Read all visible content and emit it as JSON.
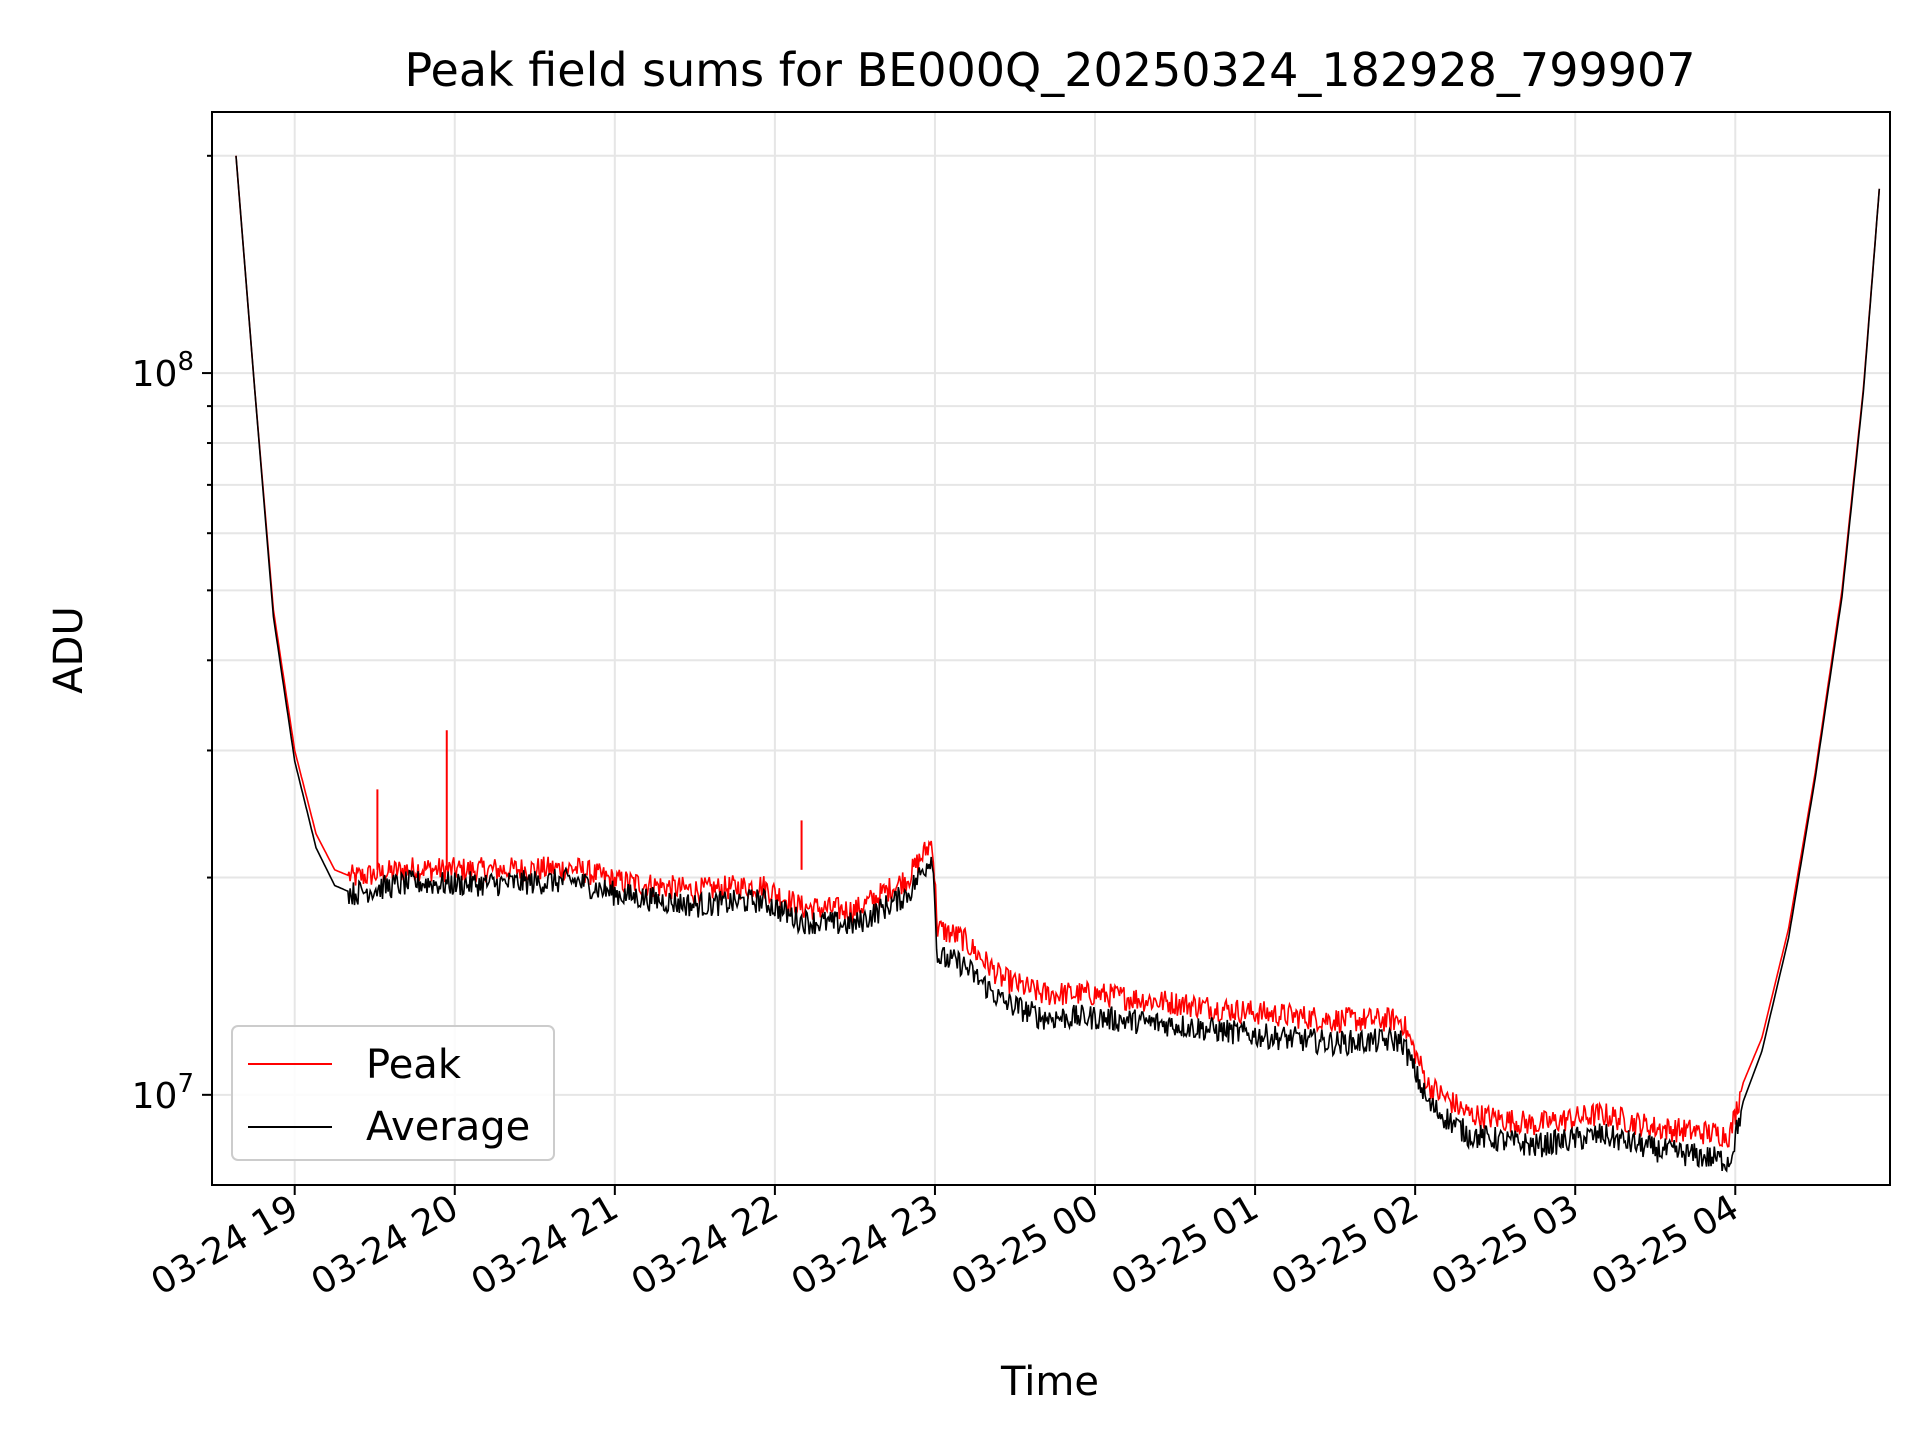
{
  "chart_data": {
    "type": "line",
    "title": "Peak field sums for BE000Q_20250324_182928_799907",
    "xlabel": "Time",
    "ylabel": "ADU",
    "yscale": "log",
    "ylim": [
      7500000,
      230000000
    ],
    "xlim": [
      "2025-03-24 18:29",
      "2025-03-25 04:58"
    ],
    "xticks": [
      "03-24 19",
      "03-24 20",
      "03-24 21",
      "03-24 22",
      "03-24 23",
      "03-25 00",
      "03-25 01",
      "03-25 02",
      "03-25 03",
      "03-25 04"
    ],
    "yticks": [
      "10^8",
      "10^7"
    ],
    "grid": true,
    "legend_position": "lower-left",
    "colors": {
      "peak": "#ff0000",
      "average": "#000000",
      "grid": "#e6e6e6"
    },
    "series": [
      {
        "name": "Peak",
        "x": [
          "2025-03-24 18:38",
          "2025-03-24 18:45",
          "2025-03-24 18:52",
          "2025-03-24 19:00",
          "2025-03-24 19:08",
          "2025-03-24 19:15",
          "2025-03-24 19:22",
          "2025-03-24 19:30",
          "2025-03-24 19:45",
          "2025-03-24 19:55",
          "2025-03-24 20:15",
          "2025-03-24 20:45",
          "2025-03-24 21:00",
          "2025-03-24 21:30",
          "2025-03-24 21:55",
          "2025-03-24 22:10",
          "2025-03-24 22:30",
          "2025-03-24 22:50",
          "2025-03-24 22:59",
          "2025-03-24 23:01",
          "2025-03-24 23:10",
          "2025-03-24 23:25",
          "2025-03-24 23:40",
          "2025-03-25 00:00",
          "2025-03-25 00:30",
          "2025-03-25 01:00",
          "2025-03-25 01:30",
          "2025-03-25 01:55",
          "2025-03-25 02:05",
          "2025-03-25 02:20",
          "2025-03-25 02:45",
          "2025-03-25 03:10",
          "2025-03-25 03:30",
          "2025-03-25 03:58",
          "2025-03-25 04:03",
          "2025-03-25 04:10",
          "2025-03-25 04:20",
          "2025-03-25 04:30",
          "2025-03-25 04:40",
          "2025-03-25 04:48",
          "2025-03-25 04:54"
        ],
        "y": [
          200000000,
          95000000,
          47000000,
          30000000,
          23000000,
          20500000,
          20000000,
          20200000,
          20600000,
          20500000,
          20500000,
          20600000,
          19800000,
          19200000,
          19500000,
          18200000,
          18000000,
          20000000,
          22500000,
          17000000,
          16500000,
          14500000,
          13800000,
          13800000,
          13400000,
          13000000,
          12700000,
          12700000,
          10300000,
          9400000,
          9100000,
          9400000,
          9000000,
          8800000,
          10400000,
          12000000,
          17000000,
          28000000,
          50000000,
          95000000,
          180000000
        ]
      },
      {
        "name": "Average",
        "x": [
          "2025-03-24 18:38",
          "2025-03-24 18:45",
          "2025-03-24 18:52",
          "2025-03-24 19:00",
          "2025-03-24 19:08",
          "2025-03-24 19:15",
          "2025-03-24 19:22",
          "2025-03-24 19:30",
          "2025-03-24 19:45",
          "2025-03-24 19:55",
          "2025-03-24 20:15",
          "2025-03-24 20:45",
          "2025-03-24 21:00",
          "2025-03-24 21:30",
          "2025-03-24 21:55",
          "2025-03-24 22:10",
          "2025-03-24 22:30",
          "2025-03-24 22:50",
          "2025-03-24 22:59",
          "2025-03-24 23:01",
          "2025-03-24 23:10",
          "2025-03-24 23:25",
          "2025-03-24 23:40",
          "2025-03-25 00:00",
          "2025-03-25 00:30",
          "2025-03-25 01:00",
          "2025-03-25 01:30",
          "2025-03-25 01:55",
          "2025-03-25 02:05",
          "2025-03-25 02:20",
          "2025-03-25 02:45",
          "2025-03-25 03:10",
          "2025-03-25 03:30",
          "2025-03-25 03:58",
          "2025-03-25 04:03",
          "2025-03-25 04:10",
          "2025-03-25 04:20",
          "2025-03-25 04:30",
          "2025-03-25 04:40",
          "2025-03-25 04:48",
          "2025-03-25 04:54"
        ],
        "y": [
          200000000,
          95000000,
          46000000,
          29000000,
          22000000,
          19500000,
          19000000,
          19300000,
          19700000,
          19600000,
          19600000,
          19800000,
          19000000,
          18300000,
          18600000,
          17400000,
          17200000,
          19000000,
          21500000,
          15500000,
          15200000,
          13500000,
          12800000,
          12800000,
          12500000,
          12100000,
          11800000,
          11900000,
          9700000,
          8800000,
          8500000,
          8800000,
          8400000,
          8100000,
          9800000,
          11500000,
          16500000,
          27500000,
          49000000,
          94000000,
          180000000
        ]
      }
    ],
    "spikes": [
      {
        "series": "Peak",
        "x": "2025-03-24 19:31",
        "y": 26500000
      },
      {
        "series": "Peak",
        "x": "2025-03-24 19:57",
        "y": 32000000
      },
      {
        "series": "Peak",
        "x": "2025-03-24 22:10",
        "y": 24000000
      }
    ]
  }
}
